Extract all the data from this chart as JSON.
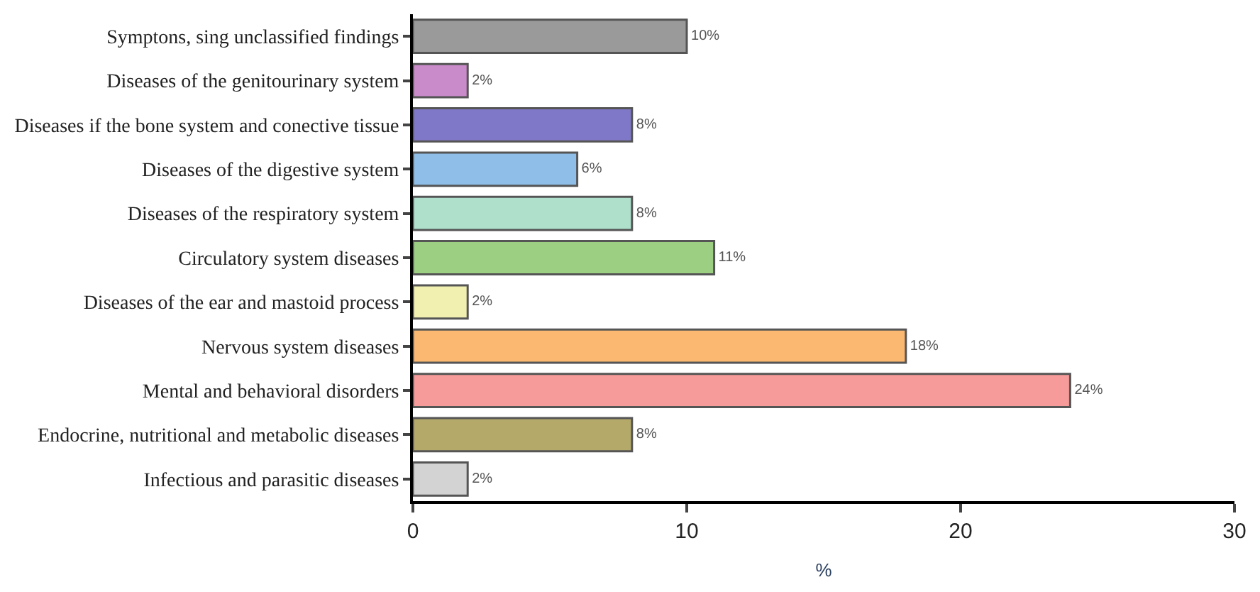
{
  "chart_data": {
    "type": "bar",
    "orientation": "horizontal",
    "xlabel": "%",
    "categories": [
      "Symptons, sing unclassified findings",
      "Diseases of the genitourinary system",
      "Diseases if the bone system and conective tissue",
      "Diseases of the digestive system",
      "Diseases of the respiratory system",
      "Circulatory system diseases",
      "Diseases of the ear and mastoid process",
      "Nervous system diseases",
      "Mental and behavioral disorders",
      "Endocrine, nutritional and metabolic diseases",
      "Infectious and parasitic diseases"
    ],
    "values": [
      10,
      2,
      8,
      6,
      8,
      11,
      2,
      18,
      24,
      8,
      2
    ],
    "value_labels": [
      "10%",
      "2%",
      "8%",
      "6%",
      "8%",
      "11%",
      "2%",
      "18%",
      "24%",
      "8%",
      "2%"
    ],
    "colors": [
      "#9a9a9a",
      "#c98bc9",
      "#7f78c8",
      "#8fbfe8",
      "#aee0cc",
      "#9ccf82",
      "#f2f0b0",
      "#fbb870",
      "#f79a9a",
      "#b5a96a",
      "#d3d3d3"
    ],
    "xlim": [
      0,
      30
    ],
    "xticks": [
      0,
      10,
      20,
      30
    ]
  }
}
